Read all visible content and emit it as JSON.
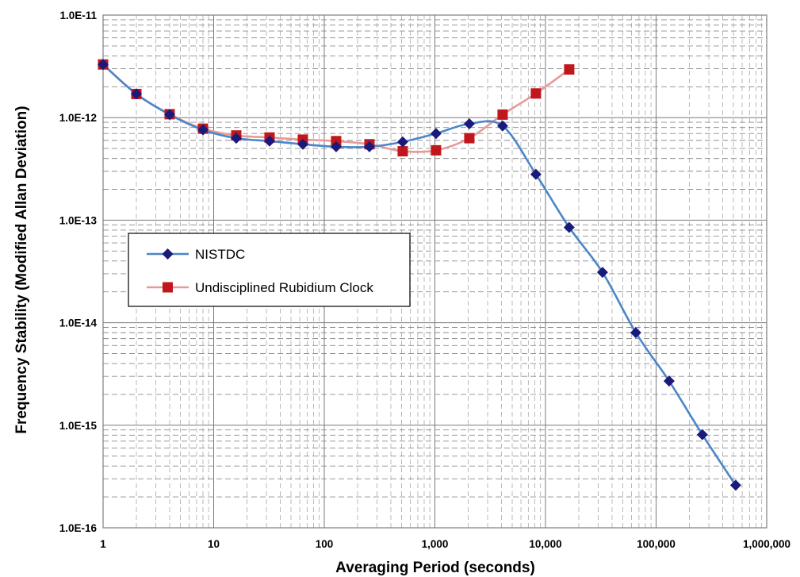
{
  "chart_data": {
    "type": "line",
    "xscale": "log",
    "yscale": "log",
    "xlabel": "Averaging Period (seconds)",
    "ylabel": "Frequency Stability (Modified Allan Deviation)",
    "xlim": [
      1,
      1000000
    ],
    "ylim": [
      1e-16,
      1e-11
    ],
    "x_tick_labels": [
      "1",
      "10",
      "100",
      "1,000",
      "10,000",
      "100,000",
      "1,000,000"
    ],
    "y_tick_labels": [
      "1.0E-11",
      "1.0E-12",
      "1.0E-13",
      "1.0E-14",
      "1.0E-15",
      "1.0E-16"
    ],
    "grid": true,
    "legend_position": "middle-left",
    "series": [
      {
        "name": "NISTDC",
        "color": "#4a86c8",
        "marker": "diamond",
        "marker_color": "#1a1a7a",
        "x": [
          1,
          2,
          4,
          8,
          16,
          32,
          64,
          128,
          256,
          512,
          1024,
          2048,
          4096,
          8192,
          16384,
          32768,
          65536,
          131072,
          262144,
          524288
        ],
        "y": [
          3.3e-12,
          1.7e-12,
          1.07e-12,
          7.6e-13,
          6.3e-13,
          5.9e-13,
          5.5e-13,
          5.2e-13,
          5.2e-13,
          5.8e-13,
          7e-13,
          8.7e-13,
          8.3e-13,
          2.8e-13,
          8.5e-14,
          3.1e-14,
          8e-15,
          2.7e-15,
          8.1e-16,
          2.6e-16
        ]
      },
      {
        "name": "Undisciplined Rubidium Clock",
        "color": "#e69a9a",
        "marker": "square",
        "marker_color": "#c0161c",
        "x": [
          1,
          2,
          4,
          8,
          16,
          32,
          64,
          128,
          256,
          512,
          1024,
          2048,
          4096,
          8192,
          16384
        ],
        "y": [
          3.3e-12,
          1.7e-12,
          1.08e-12,
          7.8e-13,
          6.7e-13,
          6.4e-13,
          6.1e-13,
          5.9e-13,
          5.5e-13,
          4.7e-13,
          4.8e-13,
          6.3e-13,
          1.07e-12,
          1.72e-12,
          2.95e-12
        ]
      }
    ]
  }
}
